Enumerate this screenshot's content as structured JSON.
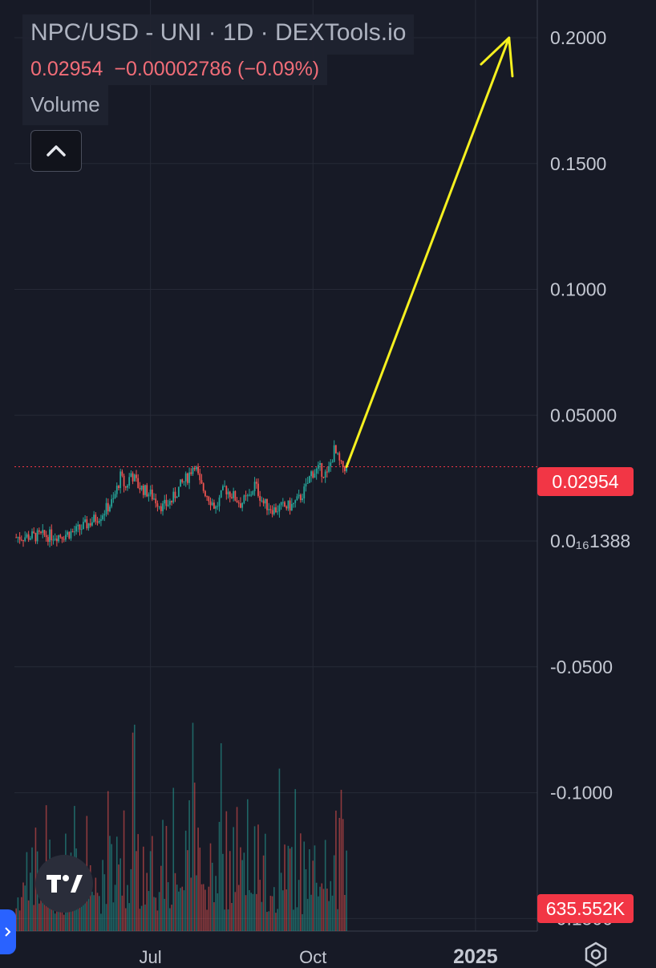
{
  "legend": {
    "title": "NPC/USD - UNI · 1D · DEXTools.io",
    "last_price": "0.02954",
    "change": "−0.00002786 (−0.09%)",
    "volume_label": "Volume"
  },
  "price_axis": {
    "ticks": [
      "0.2000",
      "0.1500",
      "0.1000",
      "0.05000",
      "0.0₁₆1388",
      "-0.0500",
      "-0.1000",
      "-0.1500"
    ],
    "current_price_label": "0.02954",
    "volume_label": "635.552K"
  },
  "time_axis": {
    "ticks": [
      "Jul",
      "Oct",
      "2025"
    ]
  },
  "colors": {
    "background": "#171a26",
    "up": "#26a69a",
    "down": "#ef5350",
    "annotation_arrow": "#f5f01f",
    "price_line": "#f23645"
  },
  "icons": [
    "chevron-up-icon",
    "tradingview-logo-icon",
    "settings-icon"
  ],
  "chart_data": {
    "type": "candlestick",
    "title": "NPC/USD - UNI · 1D · DEXTools.io",
    "interval": "1D",
    "last_price": 0.02954,
    "change_abs": -2.786e-05,
    "change_pct": -0.09,
    "y_axis_scale": "linear",
    "y_range": [
      -0.155,
      0.215
    ],
    "y_ticks": [
      0.2,
      0.15,
      0.1,
      0.05,
      0,
      -0.05,
      -0.1,
      -0.15
    ],
    "x_range": [
      "2024-04-15",
      "2025-02-05"
    ],
    "x_ticks": [
      "2024-07-01",
      "2024-10-01",
      "2025-01-01"
    ],
    "grid": true,
    "close_series": [
      [
        "2024-04-16",
        0.0015
      ],
      [
        "2024-04-22",
        0.0018
      ],
      [
        "2024-04-29",
        0.002
      ],
      [
        "2024-05-06",
        0.0022
      ],
      [
        "2024-05-13",
        0.0025
      ],
      [
        "2024-05-20",
        0.004
      ],
      [
        "2024-05-27",
        0.007
      ],
      [
        "2024-06-03",
        0.0105
      ],
      [
        "2024-06-10",
        0.016
      ],
      [
        "2024-06-14",
        0.0255
      ],
      [
        "2024-06-17",
        0.021
      ],
      [
        "2024-06-20",
        0.027
      ],
      [
        "2024-06-24",
        0.022
      ],
      [
        "2024-07-01",
        0.0185
      ],
      [
        "2024-07-08",
        0.0135
      ],
      [
        "2024-07-13",
        0.016
      ],
      [
        "2024-07-18",
        0.022
      ],
      [
        "2024-07-22",
        0.0255
      ],
      [
        "2024-07-26",
        0.031
      ],
      [
        "2024-07-29",
        0.0225
      ],
      [
        "2024-08-03",
        0.0175
      ],
      [
        "2024-08-07",
        0.013
      ],
      [
        "2024-08-12",
        0.021
      ],
      [
        "2024-08-16",
        0.0185
      ],
      [
        "2024-08-21",
        0.015
      ],
      [
        "2024-08-26",
        0.0175
      ],
      [
        "2024-08-29",
        0.0225
      ],
      [
        "2024-09-03",
        0.015
      ],
      [
        "2024-09-09",
        0.0125
      ],
      [
        "2024-09-14",
        0.0135
      ],
      [
        "2024-09-19",
        0.014
      ],
      [
        "2024-09-23",
        0.0165
      ],
      [
        "2024-09-27",
        0.021
      ],
      [
        "2024-09-30",
        0.027
      ],
      [
        "2024-10-05",
        0.0285
      ],
      [
        "2024-10-09",
        0.026
      ],
      [
        "2024-10-13",
        0.036
      ],
      [
        "2024-10-17",
        0.0295
      ],
      [
        "2024-10-20",
        0.02954
      ]
    ],
    "volume": {
      "last_value": 635552,
      "last_label": "635.552K"
    },
    "annotations": [
      {
        "type": "arrow",
        "from": [
          "2024-10-20",
          0.02954
        ],
        "to": [
          "2025-01-20",
          0.2
        ],
        "color": "#f5f01f"
      }
    ]
  }
}
